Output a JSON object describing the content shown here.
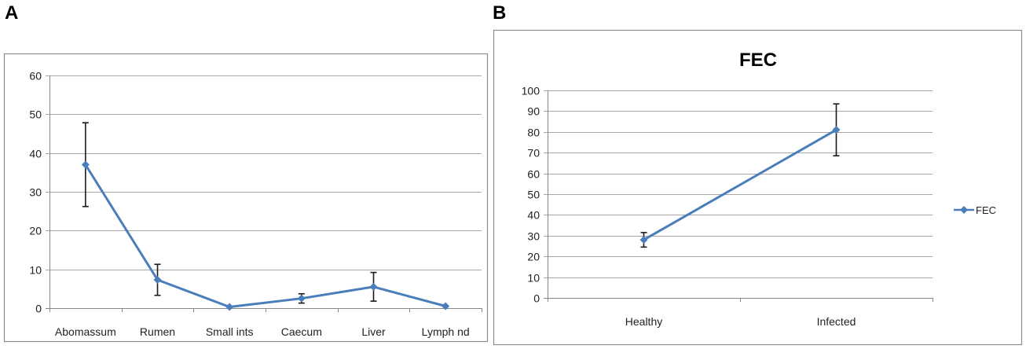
{
  "colors": {
    "series": "#4a7ebb",
    "grid": "#a6a6a6",
    "frame": "#8c8c8c",
    "error_bar": "#1a1a1a"
  },
  "chart_data": [
    {
      "panel": "A",
      "type": "line",
      "title": "",
      "xlabel": "",
      "ylabel": "",
      "categories": [
        "Abomassum",
        "Rumen",
        "Small ints",
        "Caecum",
        "Liver",
        "Lymph nd"
      ],
      "series": [
        {
          "name": "",
          "values": [
            37,
            7.3,
            0.3,
            2.5,
            5.5,
            0.5
          ],
          "error": [
            10.8,
            4,
            0,
            1.2,
            3.7,
            0
          ]
        }
      ],
      "ylim": [
        0,
        60
      ],
      "yticks": [
        0,
        10,
        20,
        30,
        40,
        50,
        60
      ],
      "grid": true,
      "legend": false
    },
    {
      "panel": "B",
      "type": "line",
      "title": "FEC",
      "xlabel": "",
      "ylabel": "",
      "categories": [
        "Healthy",
        "Infected"
      ],
      "series": [
        {
          "name": "FEC",
          "values": [
            28,
            81
          ],
          "error": [
            3.5,
            12.5
          ]
        }
      ],
      "ylim": [
        0,
        100
      ],
      "yticks": [
        0,
        10,
        20,
        30,
        40,
        50,
        60,
        70,
        80,
        90,
        100
      ],
      "grid": true,
      "legend": true,
      "legend_position": "right"
    }
  ]
}
